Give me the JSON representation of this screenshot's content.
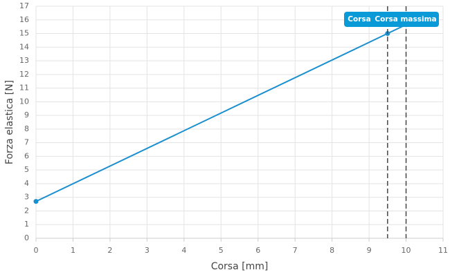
{
  "chart_data": {
    "type": "line",
    "x_label": "Corsa [mm]",
    "y_label": "Forza elastica [N]",
    "series": [
      {
        "x": [
          0,
          9.5,
          10
        ],
        "values": [
          2.7,
          15,
          15.65
        ],
        "color": "#1a8fcf",
        "markers": [
          true,
          true,
          false
        ]
      }
    ],
    "xlim": [
      0,
      11
    ],
    "xticks": [
      0,
      1,
      2,
      3,
      4,
      5,
      6,
      7,
      8,
      9,
      10,
      11
    ],
    "ylim": [
      0,
      17
    ],
    "yticks": [
      0,
      1,
      2,
      3,
      4,
      5,
      6,
      7,
      8,
      9,
      10,
      11,
      12,
      13,
      14,
      15,
      16,
      17
    ],
    "grid": true,
    "vlines": [
      {
        "x": 9.5,
        "label": "Corsa"
      },
      {
        "x": 10,
        "label": "Corsa massima"
      }
    ],
    "vline_color": "#444444",
    "label_color": "#0b9ad8"
  }
}
